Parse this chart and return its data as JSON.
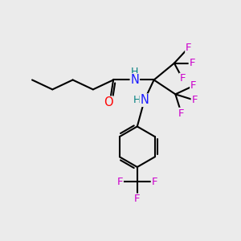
{
  "background_color": "#ebebeb",
  "bond_color": "#000000",
  "bond_width": 1.5,
  "figsize": [
    3.0,
    3.0
  ],
  "dpi": 100,
  "atom_colors": {
    "N": "#1a1aff",
    "O": "#ff0000",
    "F": "#cc00cc",
    "NH_color": "#008080"
  },
  "font_size_atom": 9.5
}
